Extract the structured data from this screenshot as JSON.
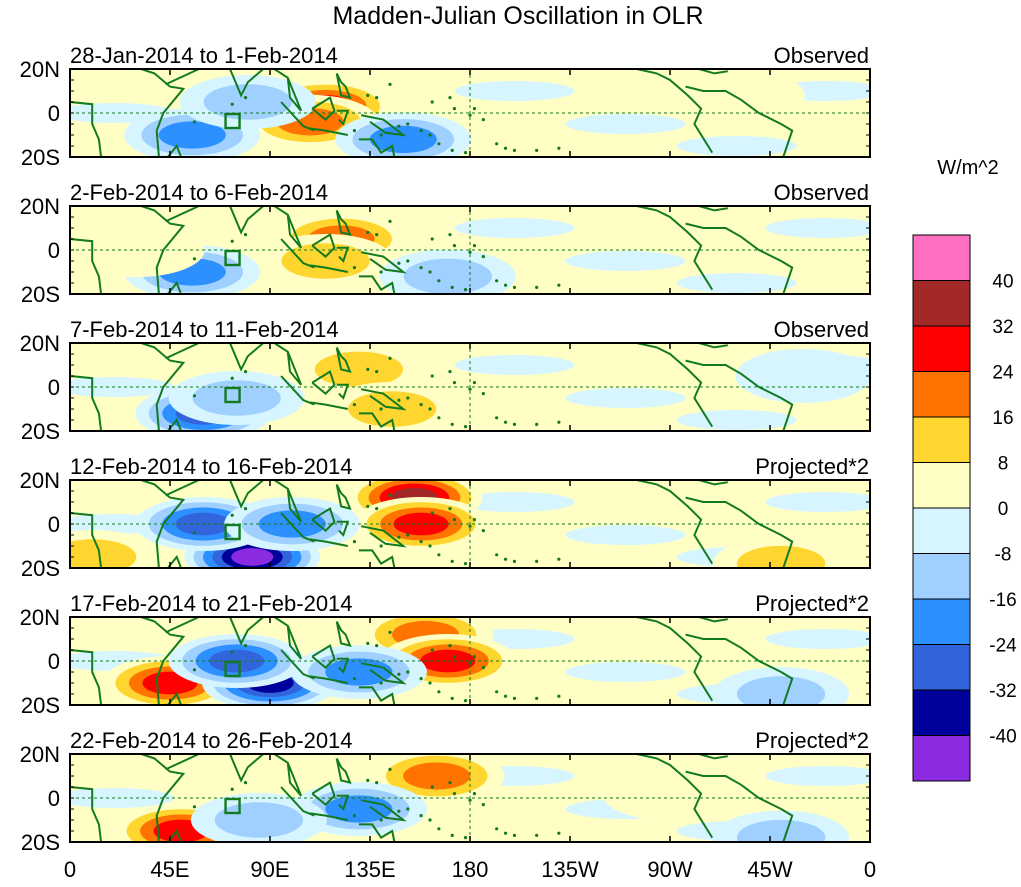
{
  "title": "Madden-Julian Oscillation in OLR",
  "chart_data": {
    "type": "heatmap",
    "title": "Madden-Julian Oscillation in OLR",
    "x_axis": {
      "ticks": [
        "0",
        "45E",
        "90E",
        "135E",
        "180",
        "135W",
        "90W",
        "45W",
        "0"
      ],
      "range_deg_east": [
        0,
        360
      ]
    },
    "y_axis": {
      "ticks": [
        "20N",
        "0",
        "20S"
      ],
      "range_deg": [
        -20,
        20
      ]
    },
    "panels": [
      {
        "date_range": "28-Jan-2014 to 1-Feb-2014",
        "label": "Observed",
        "anomalies": [
          {
            "lon": 115,
            "lat": 3,
            "value": 28
          },
          {
            "lon": 108,
            "lat": -4,
            "value": 18
          },
          {
            "lon": 150,
            "lat": -12,
            "value": -20
          },
          {
            "lon": 55,
            "lat": -10,
            "value": -20
          },
          {
            "lon": 80,
            "lat": 5,
            "value": -10
          },
          {
            "lon": 300,
            "lat": 8,
            "value": 6
          }
        ]
      },
      {
        "date_range": "2-Feb-2014 to 6-Feb-2014",
        "label": "Observed",
        "anomalies": [
          {
            "lon": 122,
            "lat": 5,
            "value": 20
          },
          {
            "lon": 115,
            "lat": -5,
            "value": 14
          },
          {
            "lon": 55,
            "lat": -10,
            "value": -20
          },
          {
            "lon": 170,
            "lat": -12,
            "value": -12
          },
          {
            "lon": 30,
            "lat": 0,
            "value": 6
          }
        ]
      },
      {
        "date_range": "7-Feb-2014 to 11-Feb-2014",
        "label": "Observed",
        "anomalies": [
          {
            "lon": 130,
            "lat": 8,
            "value": 14
          },
          {
            "lon": 60,
            "lat": -12,
            "value": -28
          },
          {
            "lon": 75,
            "lat": -5,
            "value": -12
          },
          {
            "lon": 145,
            "lat": -10,
            "value": 10
          },
          {
            "lon": 330,
            "lat": 5,
            "value": -6
          }
        ]
      },
      {
        "date_range": "12-Feb-2014 to 16-Feb-2014",
        "label": "Projected*2",
        "anomalies": [
          {
            "lon": 155,
            "lat": 12,
            "value": 34
          },
          {
            "lon": 158,
            "lat": 0,
            "value": 30
          },
          {
            "lon": 82,
            "lat": -15,
            "value": -42
          },
          {
            "lon": 60,
            "lat": 0,
            "value": -26
          },
          {
            "lon": 100,
            "lat": 0,
            "value": -20
          },
          {
            "lon": 10,
            "lat": -15,
            "value": 14
          },
          {
            "lon": 320,
            "lat": -18,
            "value": 14
          }
        ]
      },
      {
        "date_range": "17-Feb-2014 to 21-Feb-2014",
        "label": "Projected*2",
        "anomalies": [
          {
            "lon": 160,
            "lat": 12,
            "value": 22
          },
          {
            "lon": 170,
            "lat": 0,
            "value": 26
          },
          {
            "lon": 45,
            "lat": -10,
            "value": 30
          },
          {
            "lon": 90,
            "lat": -10,
            "value": -36
          },
          {
            "lon": 75,
            "lat": 0,
            "value": -26
          },
          {
            "lon": 130,
            "lat": -5,
            "value": -22
          },
          {
            "lon": 320,
            "lat": -15,
            "value": -16
          }
        ]
      },
      {
        "date_range": "22-Feb-2014 to 26-Feb-2014",
        "label": "Projected*2",
        "anomalies": [
          {
            "lon": 165,
            "lat": 10,
            "value": 22
          },
          {
            "lon": 50,
            "lat": -15,
            "value": 30
          },
          {
            "lon": 130,
            "lat": -5,
            "value": -24
          },
          {
            "lon": 85,
            "lat": -10,
            "value": -14
          },
          {
            "lon": 320,
            "lat": -18,
            "value": -16
          },
          {
            "lon": 270,
            "lat": 2,
            "value": 6
          }
        ]
      }
    ],
    "colorbar": {
      "unit": "W/m^2",
      "levels": [
        40,
        32,
        24,
        16,
        8,
        0,
        -8,
        -16,
        -24,
        -32,
        -40
      ],
      "colors": [
        "#ff6fc2",
        "#a32828",
        "#ff0000",
        "#ff7400",
        "#ffd630",
        "#ffffc5",
        "#d6f5ff",
        "#a0d0ff",
        "#2d90ff",
        "#3264dc",
        "#00009a",
        "#8a2be2"
      ]
    },
    "continent_color": "#127a20",
    "reference_lines": [
      "equator",
      "180"
    ]
  }
}
